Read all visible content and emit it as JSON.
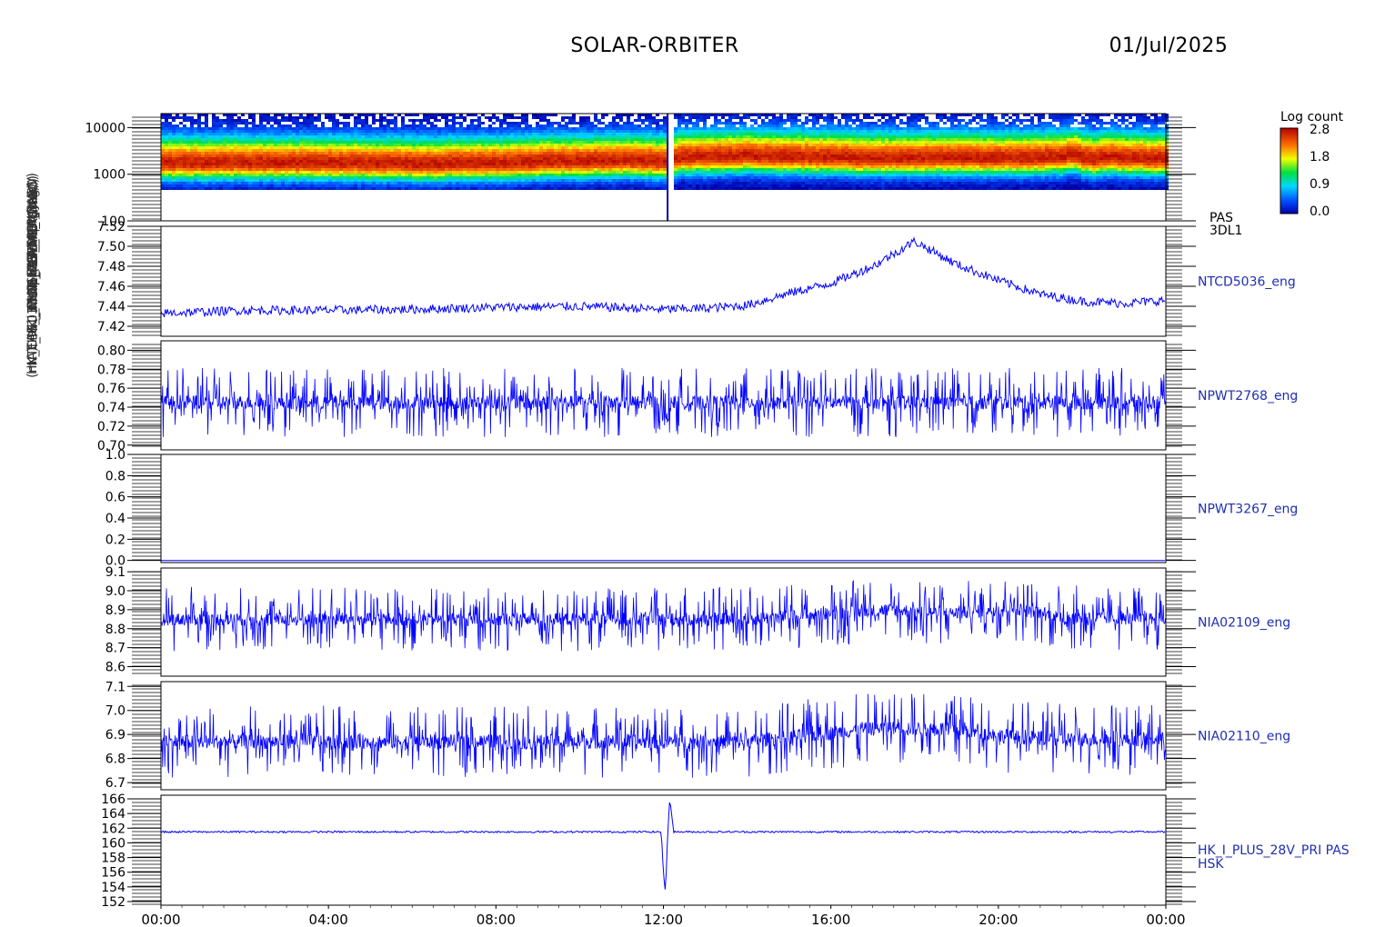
{
  "header": {
    "title": "SOLAR-ORBITER",
    "date": "01/Jul/2025"
  },
  "ylabels_overlapped": [
    "PAS Energy (eV)",
    "NTCD5036 Appx Temp (DegC)",
    "ANT1 (SWA-EAS-TLC)",
    "HK_EAS1_CMD-EVT_MCP (raw)",
    "THERMISTOR_4 (nA)",
    "I_HK_IMON_PEHMLP (mA)",
    "(mA) HK_I_PLUS_28V_PRI_PAS"
  ],
  "colorbar": {
    "title": "Log count",
    "ticks": [
      "2.8",
      "1.8",
      "0.9",
      "0.0"
    ]
  },
  "colors": {
    "line": "#0000ff",
    "axis": "#000000",
    "label": "#1f2fb0"
  },
  "chart_data": [
    {
      "type": "heatmap",
      "name": "PAS 3DL1",
      "right_label": [
        "PAS",
        "3DL1"
      ],
      "yscale": "log",
      "ylim": [
        100,
        20000
      ],
      "yticks": [
        {
          "v": 100,
          "label": "100"
        },
        {
          "v": 1000,
          "label": "1000"
        },
        {
          "v": 10000,
          "label": "10000"
        }
      ],
      "peak_energy_eV": [
        [
          0,
          1850
        ],
        [
          2,
          1850
        ],
        [
          4,
          1850
        ],
        [
          6,
          1750
        ],
        [
          6.5,
          1700
        ],
        [
          7,
          1800
        ],
        [
          8,
          1800
        ],
        [
          9,
          1950
        ],
        [
          10,
          2000
        ],
        [
          11,
          2100
        ],
        [
          11.8,
          2000
        ],
        [
          12.1,
          1900
        ],
        [
          12.3,
          2400
        ],
        [
          13,
          2500
        ],
        [
          14,
          2600
        ],
        [
          15,
          2500
        ],
        [
          16,
          2400
        ],
        [
          17,
          2300
        ],
        [
          18,
          2350
        ],
        [
          19,
          2350
        ],
        [
          20,
          2300
        ],
        [
          21,
          2400
        ],
        [
          21.8,
          2600
        ],
        [
          22.2,
          2200
        ],
        [
          22.6,
          2500
        ],
        [
          23,
          2300
        ],
        [
          24,
          2200
        ]
      ],
      "data_gap_hours": [
        12.0,
        12.2
      ]
    },
    {
      "type": "line",
      "name": "NTCD5036_eng",
      "ylim": [
        7.41,
        7.52
      ],
      "yticks": [
        "7.42",
        "7.44",
        "7.46",
        "7.48",
        "7.50",
        "7.52"
      ],
      "x": [
        0,
        2,
        4,
        6,
        8,
        10,
        12,
        13,
        14,
        15,
        16,
        17,
        18,
        19,
        20,
        21,
        22,
        23,
        24
      ],
      "y": [
        7.433,
        7.436,
        7.436,
        7.437,
        7.439,
        7.44,
        7.437,
        7.438,
        7.441,
        7.453,
        7.463,
        7.48,
        7.505,
        7.482,
        7.466,
        7.452,
        7.445,
        7.443,
        7.446
      ]
    },
    {
      "type": "line",
      "name": "NPWT2768_eng",
      "ylim": [
        0.695,
        0.81
      ],
      "yticks": [
        "0.70",
        "0.72",
        "0.74",
        "0.76",
        "0.78",
        "0.80"
      ],
      "x": [
        0,
        4,
        8,
        11.9,
        12.05,
        12.2,
        16,
        20,
        24
      ],
      "y": [
        0.745,
        0.745,
        0.745,
        0.745,
        0.725,
        0.745,
        0.745,
        0.745,
        0.745
      ],
      "range_min": 0.712,
      "range_max": 0.785
    },
    {
      "type": "line",
      "name": "NPWT3267_eng",
      "ylim": [
        -0.02,
        1.0
      ],
      "yticks": [
        "0.0",
        "0.2",
        "0.4",
        "0.6",
        "0.8",
        "1.0"
      ],
      "x": [
        0,
        24
      ],
      "y": [
        0.0,
        0.0
      ]
    },
    {
      "type": "line",
      "name": "NIA02109_eng",
      "ylim": [
        8.55,
        9.12
      ],
      "yticks": [
        "8.6",
        "8.7",
        "8.8",
        "8.9",
        "9.0",
        "9.1"
      ],
      "x": [
        0,
        14,
        17.3,
        19,
        20.3,
        21.5,
        24
      ],
      "y": [
        8.85,
        8.85,
        8.9,
        8.88,
        8.91,
        8.86,
        8.85
      ],
      "range_min": 8.68,
      "range_max": 9.02
    },
    {
      "type": "line",
      "name": "NIA02110_eng",
      "ylim": [
        6.67,
        7.12
      ],
      "yticks": [
        "6.7",
        "6.8",
        "6.9",
        "7.0",
        "7.1"
      ],
      "x": [
        0,
        14,
        17.3,
        19,
        20.3,
        21.5,
        24
      ],
      "y": [
        6.87,
        6.87,
        6.93,
        6.92,
        6.89,
        6.88,
        6.88
      ],
      "range_min": 6.75,
      "range_max": 7.05
    },
    {
      "type": "line",
      "name": "HK_I_PLUS_28V_PRI PAS HSK",
      "right_label": [
        "HK_I_PLUS_28V_PRI PAS",
        "HSK"
      ],
      "ylim": [
        151.5,
        166.5
      ],
      "yticks": [
        "152",
        "154",
        "156",
        "158",
        "160",
        "162",
        "164",
        "166"
      ],
      "x": [
        0,
        11.95,
        12.0,
        12.05,
        12.1,
        12.15,
        12.25,
        24
      ],
      "y": [
        161.5,
        161.5,
        156,
        153,
        161,
        166,
        161.5,
        161.5
      ]
    }
  ],
  "xaxis": {
    "ticks": [
      "00:00",
      "04:00",
      "08:00",
      "12:00",
      "16:00",
      "20:00",
      "00:00"
    ]
  }
}
